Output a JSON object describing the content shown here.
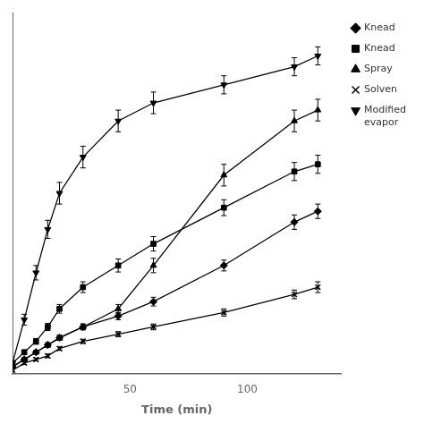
{
  "chart_data": {
    "type": "line",
    "x_label": "Time (min)",
    "x": [
      0,
      5,
      10,
      15,
      20,
      30,
      45,
      60,
      90,
      120,
      130
    ],
    "xlim": [
      0,
      140
    ],
    "xticks": [
      50,
      100
    ],
    "ylim": [
      0,
      100
    ],
    "tick_labels": "x",
    "grid": false,
    "legend": "right",
    "series": [
      {
        "name": "Knead",
        "marker": "diamond",
        "color": "#000000",
        "values": [
          2,
          4,
          6,
          8,
          10,
          13,
          16,
          20,
          30,
          42,
          45
        ],
        "yerr": [
          0.4,
          0.5,
          0.5,
          0.6,
          0.7,
          0.8,
          1.0,
          1.2,
          1.5,
          2.0,
          2.0
        ]
      },
      {
        "name": "Knead",
        "marker": "square",
        "color": "#000000",
        "values": [
          3,
          6,
          9,
          13,
          18,
          24,
          30,
          36,
          46,
          56,
          58
        ],
        "yerr": [
          0.4,
          0.6,
          0.8,
          1.0,
          1.2,
          1.5,
          1.8,
          2.0,
          2.2,
          2.5,
          2.5
        ]
      },
      {
        "name": "Spray",
        "marker": "triangle_up",
        "color": "#000000",
        "values": [
          2,
          4,
          6,
          8,
          10,
          13,
          18,
          30,
          55,
          70,
          73
        ],
        "yerr": [
          0.4,
          0.5,
          0.5,
          0.6,
          0.7,
          0.8,
          1.2,
          2.0,
          3.0,
          3.0,
          3.0
        ]
      },
      {
        "name": "Solven",
        "marker": "x",
        "color": "#000000",
        "values": [
          1,
          3,
          4,
          5,
          7,
          9,
          11,
          13,
          17,
          22,
          24
        ],
        "yerr": [
          0.3,
          0.4,
          0.4,
          0.5,
          0.5,
          0.6,
          0.7,
          0.8,
          1.0,
          1.2,
          1.5
        ]
      },
      {
        "name": "Modified\nevapor",
        "marker": "triangle_down",
        "color": "#000000",
        "values": [
          3,
          15,
          28,
          40,
          50,
          60,
          70,
          75,
          80,
          85,
          88
        ],
        "yerr": [
          0.5,
          1.5,
          2.0,
          2.5,
          3.0,
          3.0,
          3.0,
          3.0,
          2.5,
          2.5,
          2.5
        ]
      }
    ]
  }
}
